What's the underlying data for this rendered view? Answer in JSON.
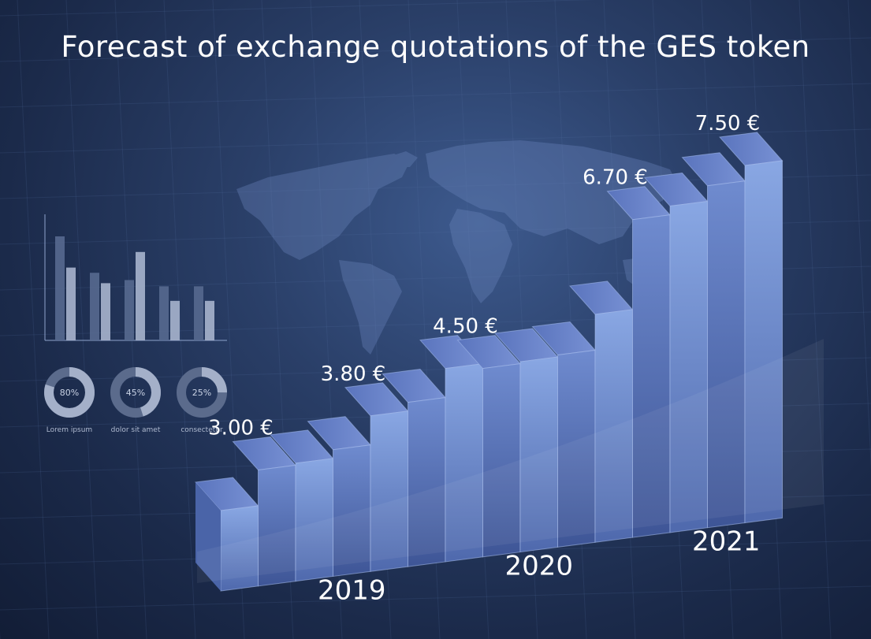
{
  "title": "Forecast of exchange quotations of the GES token",
  "colors": {
    "background": "#1b2a4a",
    "bar_front": "#6f8fd0",
    "bar_top": "#5470b8",
    "text": "#ffffff"
  },
  "chart_data": {
    "type": "bar",
    "title": "Forecast of exchange quotations of the GES token",
    "bar_count": 15,
    "price_labels": [
      "3.00 €",
      "3.80 €",
      "4.50 €",
      "6.70 €",
      "7.50 €"
    ],
    "year_labels": [
      "2019",
      "2020",
      "2021"
    ],
    "series": [
      {
        "values": [
          2.4,
          3.0,
          3.1,
          3.3,
          3.8,
          4.0,
          4.5,
          4.5,
          4.6,
          4.7,
          5.3,
          6.7,
          6.9,
          7.2,
          7.5
        ]
      }
    ]
  },
  "inset_chart": {
    "bars": [
      [
        1.0,
        0.7
      ],
      [
        0.65,
        0.55
      ],
      [
        0.58,
        0.85
      ],
      [
        0.52,
        0.38
      ],
      [
        0.52,
        0.38
      ]
    ]
  },
  "donuts": [
    {
      "percent_label": "80%",
      "fraction": 0.8,
      "caption": "Lorem ipsum"
    },
    {
      "percent_label": "45%",
      "fraction": 0.45,
      "caption": "dolor sit amet"
    },
    {
      "percent_label": "25%",
      "fraction": 0.25,
      "caption": "consectetur"
    }
  ]
}
